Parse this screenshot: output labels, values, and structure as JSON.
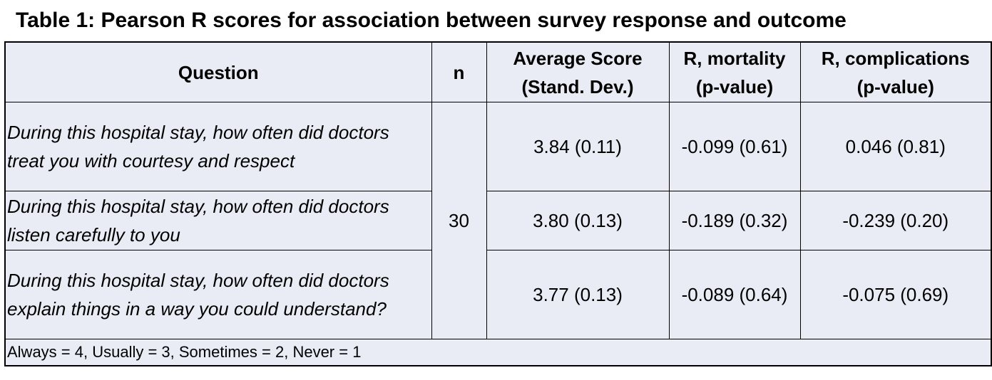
{
  "title": "Table 1: Pearson R scores for association between survey response and outcome",
  "table": {
    "header": [
      "Question",
      "n",
      "Average Score\n(Stand. Dev.)",
      "R, mortality\n(p-value)",
      "R, complications\n(p-value)"
    ],
    "n": "30",
    "rows": [
      [
        "During this hospital stay, how often did doctors treat you with courtesy and respect",
        "3.84 (0.11)",
        "-0.099 (0.61)",
        "0.046 (0.81)"
      ],
      [
        "During this hospital stay, how often did doctors listen carefully to you",
        "3.80 (0.13)",
        "-0.189 (0.32)",
        "-0.239 (0.20)"
      ],
      [
        "During this hospital stay, how often did doctors explain things in a way you could understand?",
        "3.77 (0.13)",
        "-0.089 (0.64)",
        "-0.075 (0.69)"
      ]
    ],
    "footnote": "Always = 4, Usually = 3, Sometimes = 2, Never = 1"
  }
}
